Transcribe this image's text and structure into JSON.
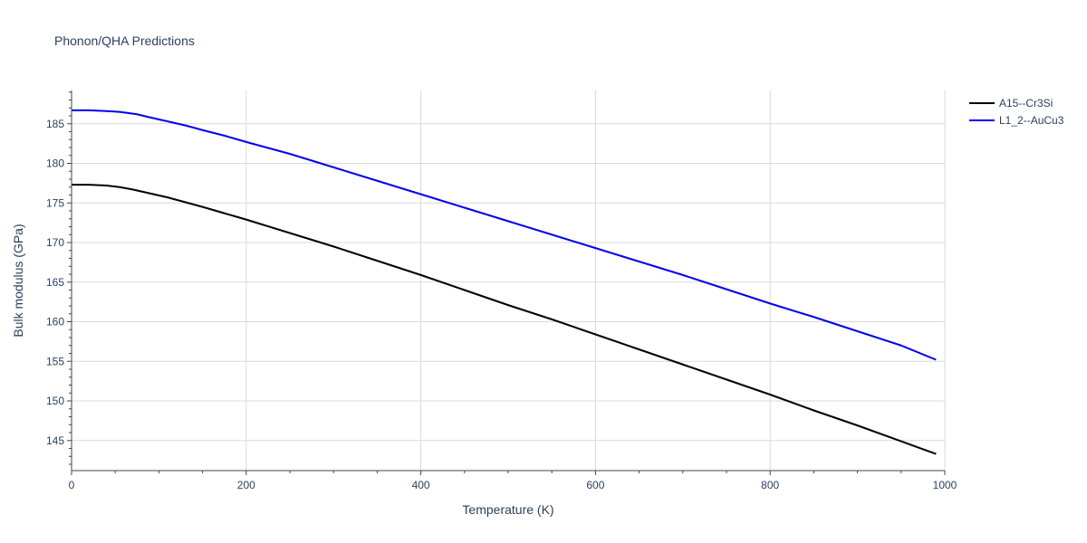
{
  "chart_data": {
    "type": "line",
    "title": "Phonon/QHA Predictions",
    "xlabel": "Temperature (K)",
    "ylabel": "Bulk modulus (GPa)",
    "xlim": [
      0,
      1000
    ],
    "ylim": [
      141.2,
      189.2
    ],
    "xticks": [
      0,
      200,
      400,
      600,
      800,
      1000
    ],
    "yticks": [
      145,
      150,
      155,
      160,
      165,
      170,
      175,
      180,
      185
    ],
    "grid": true,
    "legend_position": "top-right",
    "series": [
      {
        "name": "A15--Cr3Si",
        "color": "#000000",
        "x": [
          0,
          20,
          40,
          55,
          70,
          90,
          110,
          130,
          150,
          175,
          200,
          250,
          300,
          350,
          400,
          450,
          500,
          550,
          600,
          650,
          700,
          750,
          800,
          850,
          900,
          950,
          990
        ],
        "y": [
          177.3,
          177.3,
          177.2,
          177.0,
          176.7,
          176.2,
          175.7,
          175.1,
          174.5,
          173.7,
          172.9,
          171.2,
          169.5,
          167.7,
          165.9,
          164.0,
          162.1,
          160.3,
          158.4,
          156.5,
          154.6,
          152.7,
          150.8,
          148.8,
          146.9,
          144.9,
          143.3
        ]
      },
      {
        "name": "L1_2--AuCu3",
        "color": "#0000ee",
        "x": [
          0,
          20,
          40,
          55,
          75,
          90,
          110,
          130,
          150,
          175,
          200,
          250,
          300,
          350,
          400,
          450,
          500,
          550,
          600,
          650,
          700,
          750,
          800,
          850,
          900,
          950,
          990
        ],
        "y": [
          186.7,
          186.7,
          186.6,
          186.5,
          186.2,
          185.8,
          185.3,
          184.8,
          184.2,
          183.5,
          182.7,
          181.2,
          179.5,
          177.8,
          176.1,
          174.4,
          172.7,
          171.0,
          169.3,
          167.6,
          165.9,
          164.1,
          162.3,
          160.6,
          158.8,
          157.0,
          155.2
        ]
      }
    ]
  }
}
